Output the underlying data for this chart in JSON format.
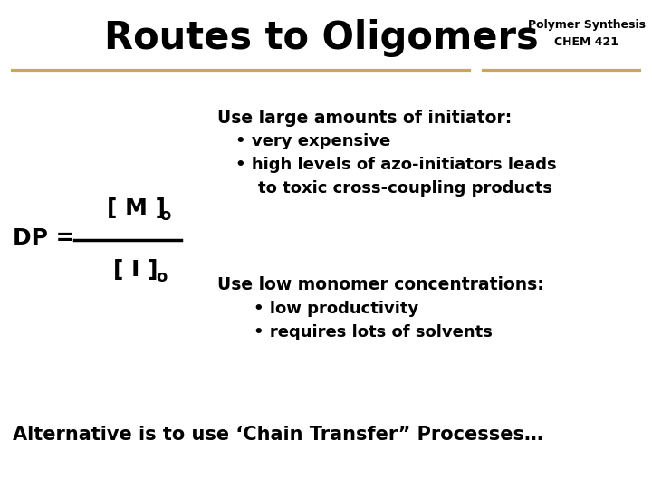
{
  "bg_color": "#FFFFFF",
  "title": "Routes to Oligomers",
  "subtitle_line1": "Polymer Synthesis",
  "subtitle_line2": "CHEM 421",
  "separator_color": "#C8A850",
  "title_fontsize": 30,
  "subtitle_fontsize": 9,
  "dp_fontsize": 18,
  "dp_sub_fontsize": 13,
  "body_fontsize": 13,
  "body_header_fontsize": 13.5,
  "alt_fontsize": 15,
  "dp_label": "DP = ",
  "numerator": "[ M ]",
  "numerator_sub": "o",
  "denominator": "[ I ]",
  "denominator_sub": "o",
  "use_large_header": "Use large amounts of initiator:",
  "use_large_bullet1": "• very expensive",
  "use_large_bullet2a": "• high levels of azo-initiators leads",
  "use_large_bullet2b": "    to toxic cross-coupling products",
  "use_low_header": "Use low monomer concentrations:",
  "use_low_bullet1": "• low productivity",
  "use_low_bullet2": "• requires lots of solvents",
  "alternative": "Alternative is to use ‘Chain Transfer” Processes…",
  "text_color": "#000000",
  "title_color": "#1a1a1a"
}
